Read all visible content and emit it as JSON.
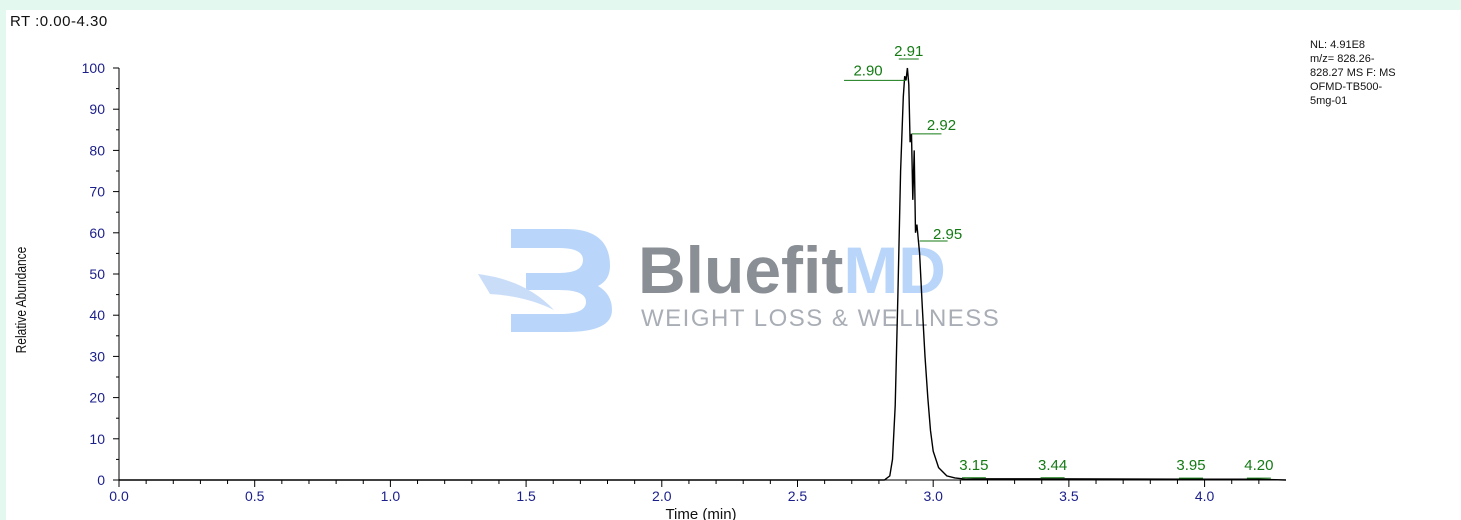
{
  "rt_range": "RT :0.00-4.30",
  "info_lines": [
    "NL: 4.91E8",
    "m/z= 828.26-",
    "828.27 MS  F: MS",
    "OFMD-TB500-",
    "5mg-01"
  ],
  "watermark": {
    "brand_part1": "Bluefit",
    "brand_part2": "MD",
    "tagline": "WEIGHT LOSS & WELLNESS",
    "color_dark": "#8a8f96",
    "color_light": "#b9d6fa"
  },
  "colors": {
    "trace": "#000000",
    "peak_label": "#147a14",
    "tick_label": "#1b1f8a"
  },
  "chart_data": {
    "type": "line",
    "title": "",
    "xlabel": "Time (min)",
    "ylabel": "Relative Abundance",
    "xlim": [
      0.0,
      4.3
    ],
    "ylim": [
      0,
      100
    ],
    "x_ticks": [
      "0.0",
      "0.5",
      "1.0",
      "1.5",
      "2.0",
      "2.5",
      "3.0",
      "3.5",
      "4.0"
    ],
    "y_ticks": [
      "0",
      "10",
      "20",
      "30",
      "40",
      "50",
      "60",
      "70",
      "80",
      "90",
      "100"
    ],
    "grid": false,
    "legend": "none",
    "series": [
      {
        "x": [
          0.0,
          2.8,
          2.82,
          2.84,
          2.85,
          2.86,
          2.87,
          2.88,
          2.89,
          2.895,
          2.9,
          2.905,
          2.91,
          2.915,
          2.92,
          2.925,
          2.93,
          2.935,
          2.94,
          2.95,
          2.96,
          2.97,
          2.98,
          2.99,
          3.0,
          3.02,
          3.05,
          3.08,
          3.12,
          3.15,
          3.44,
          3.95,
          4.2,
          4.3
        ],
        "y": [
          0,
          0,
          0,
          1,
          5,
          18,
          45,
          75,
          93,
          98,
          97,
          100,
          96,
          82,
          84,
          68,
          80,
          60,
          62,
          55,
          42,
          30,
          20,
          12,
          7,
          3,
          1,
          0.5,
          0.2,
          0.3,
          0.3,
          0.2,
          0.2,
          0
        ]
      }
    ],
    "peak_labels": [
      {
        "text": "2.90",
        "x": 2.9,
        "y": 97
      },
      {
        "text": "2.91",
        "x": 2.91,
        "y": 100
      },
      {
        "text": "2.92",
        "x": 2.92,
        "y": 84
      },
      {
        "text": "2.95",
        "x": 2.95,
        "y": 58
      },
      {
        "text": "3.15",
        "x": 3.15,
        "y": 0.3
      },
      {
        "text": "3.44",
        "x": 3.44,
        "y": 0.3
      },
      {
        "text": "3.95",
        "x": 3.95,
        "y": 0.2
      },
      {
        "text": "4.20",
        "x": 4.2,
        "y": 0.2
      }
    ]
  }
}
